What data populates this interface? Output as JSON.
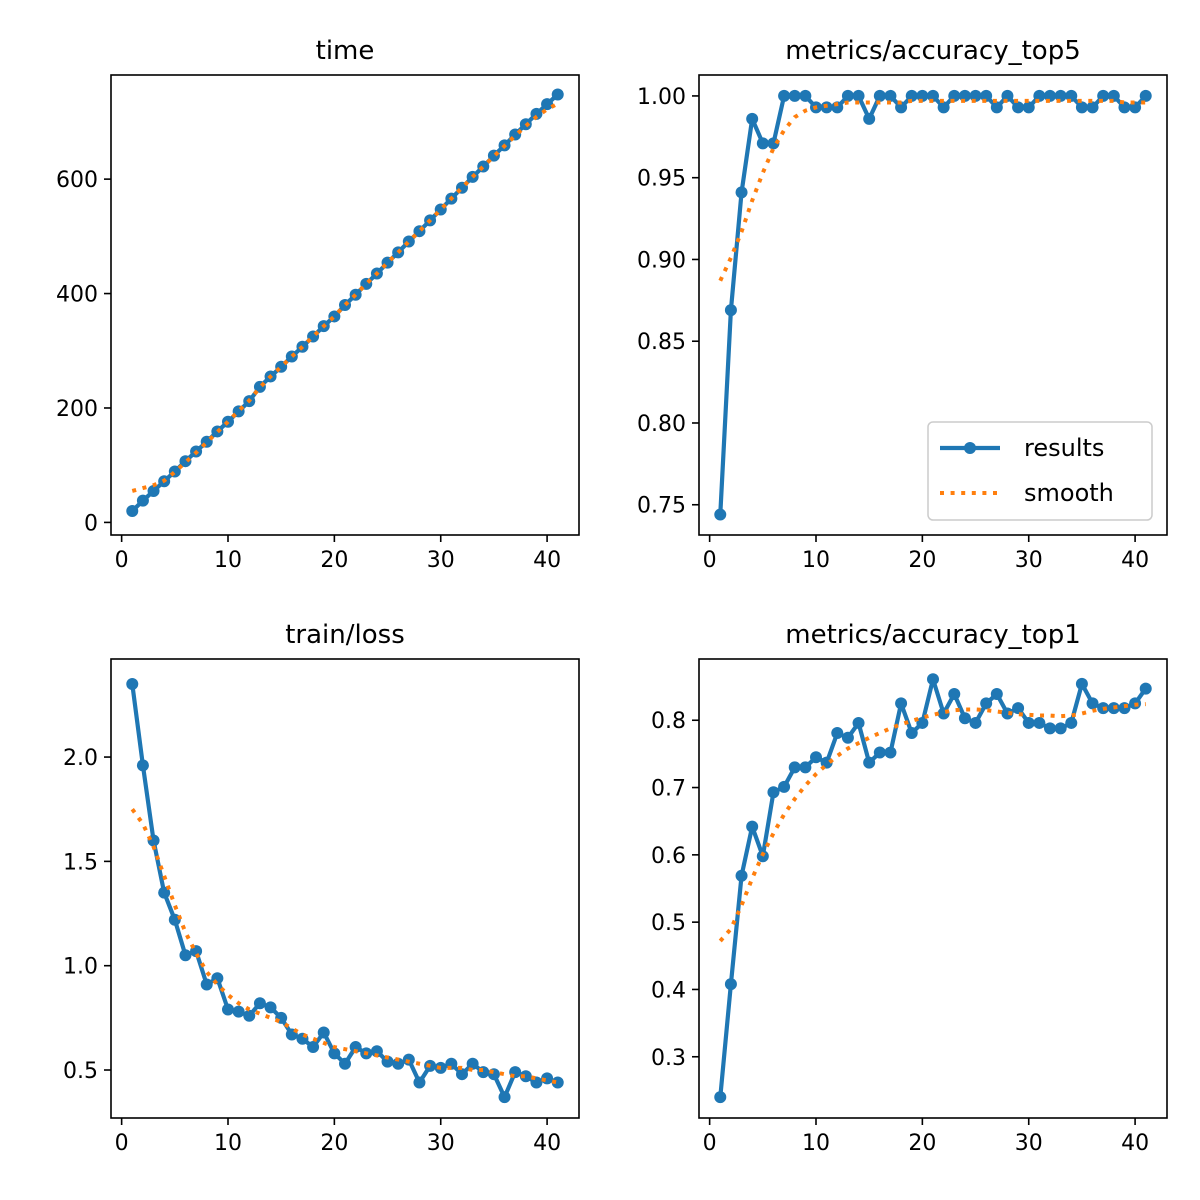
{
  "colors": {
    "results": "#1f77b4",
    "smooth": "#ff7f0e",
    "axes": "#000000",
    "background": "#ffffff"
  },
  "chart_data": [
    {
      "type": "line",
      "title": "time",
      "xlabel": "",
      "ylabel": "",
      "xlim": [
        -1,
        43
      ],
      "ylim": [
        -22,
        782
      ],
      "xticks": [
        0,
        10,
        20,
        30,
        40
      ],
      "yticks": [
        0,
        200,
        400,
        600
      ],
      "x": [
        1,
        2,
        3,
        4,
        5,
        6,
        7,
        8,
        9,
        10,
        11,
        12,
        13,
        14,
        15,
        16,
        17,
        18,
        19,
        20,
        21,
        22,
        23,
        24,
        25,
        26,
        27,
        28,
        29,
        30,
        31,
        32,
        33,
        34,
        35,
        36,
        37,
        38,
        39,
        40,
        41
      ],
      "series": [
        {
          "name": "results",
          "style": "line-marker",
          "values": [
            20,
            38,
            55,
            72,
            89,
            107,
            124,
            141,
            159,
            176,
            194,
            212,
            237,
            255,
            272,
            290,
            307,
            325,
            343,
            360,
            380,
            398,
            417,
            435,
            454,
            472,
            491,
            509,
            528,
            547,
            566,
            585,
            604,
            622,
            641,
            659,
            678,
            696,
            714,
            731,
            748
          ]
        },
        {
          "name": "smooth",
          "style": "dotted",
          "values": [
            55,
            60,
            65,
            73,
            88,
            105,
            122,
            140,
            158,
            176,
            195,
            213,
            236,
            255,
            272,
            290,
            307,
            325,
            343,
            360,
            380,
            398,
            417,
            435,
            454,
            472,
            491,
            509,
            528,
            547,
            566,
            585,
            604,
            622,
            640,
            658,
            676,
            693,
            709,
            722,
            732
          ]
        }
      ],
      "legend": null
    },
    {
      "type": "line",
      "title": "metrics/accuracy_top5",
      "xlabel": "",
      "ylabel": "",
      "xlim": [
        -1,
        43
      ],
      "ylim": [
        0.7315,
        1.0128
      ],
      "xticks": [
        0,
        10,
        20,
        30,
        40
      ],
      "yticks": [
        0.75,
        0.8,
        0.85,
        0.9,
        0.95,
        1.0
      ],
      "ytick_decimals": 2,
      "x": [
        1,
        2,
        3,
        4,
        5,
        6,
        7,
        8,
        9,
        10,
        11,
        12,
        13,
        14,
        15,
        16,
        17,
        18,
        19,
        20,
        21,
        22,
        23,
        24,
        25,
        26,
        27,
        28,
        29,
        30,
        31,
        32,
        33,
        34,
        35,
        36,
        37,
        38,
        39,
        40,
        41
      ],
      "series": [
        {
          "name": "results",
          "style": "line-marker",
          "values": [
            0.744,
            0.869,
            0.941,
            0.986,
            0.971,
            0.971,
            1.0,
            1.0,
            1.0,
            0.993,
            0.993,
            0.993,
            1.0,
            1.0,
            0.986,
            1.0,
            1.0,
            0.993,
            1.0,
            1.0,
            1.0,
            0.993,
            1.0,
            1.0,
            1.0,
            1.0,
            0.993,
            1.0,
            0.993,
            0.993,
            1.0,
            1.0,
            1.0,
            1.0,
            0.993,
            0.993,
            1.0,
            1.0,
            0.993,
            0.993,
            1.0
          ]
        },
        {
          "name": "smooth",
          "style": "dotted",
          "values": [
            0.887,
            0.901,
            0.917,
            0.936,
            0.953,
            0.968,
            0.979,
            0.987,
            0.991,
            0.993,
            0.994,
            0.995,
            0.996,
            0.996,
            0.996,
            0.996,
            0.996,
            0.996,
            0.997,
            0.997,
            0.997,
            0.997,
            0.997,
            0.997,
            0.997,
            0.997,
            0.997,
            0.997,
            0.997,
            0.997,
            0.997,
            0.997,
            0.997,
            0.997,
            0.997,
            0.997,
            0.997,
            0.997,
            0.996,
            0.996,
            0.996
          ]
        }
      ],
      "legend": {
        "placement": "lower-right",
        "entries": [
          "results",
          "smooth"
        ]
      }
    },
    {
      "type": "line",
      "title": "train/loss",
      "xlabel": "",
      "ylabel": "",
      "xlim": [
        -1,
        43
      ],
      "ylim": [
        0.27,
        2.47
      ],
      "xticks": [
        0,
        10,
        20,
        30,
        40
      ],
      "yticks": [
        0.5,
        1.0,
        1.5,
        2.0
      ],
      "ytick_decimals": 1,
      "x": [
        1,
        2,
        3,
        4,
        5,
        6,
        7,
        8,
        9,
        10,
        11,
        12,
        13,
        14,
        15,
        16,
        17,
        18,
        19,
        20,
        21,
        22,
        23,
        24,
        25,
        26,
        27,
        28,
        29,
        30,
        31,
        32,
        33,
        34,
        35,
        36,
        37,
        38,
        39,
        40,
        41
      ],
      "series": [
        {
          "name": "results",
          "style": "line-marker",
          "values": [
            2.35,
            1.96,
            1.6,
            1.35,
            1.22,
            1.05,
            1.07,
            0.91,
            0.94,
            0.79,
            0.78,
            0.76,
            0.82,
            0.8,
            0.75,
            0.67,
            0.65,
            0.61,
            0.68,
            0.58,
            0.53,
            0.61,
            0.58,
            0.59,
            0.54,
            0.53,
            0.55,
            0.44,
            0.52,
            0.51,
            0.53,
            0.48,
            0.53,
            0.49,
            0.48,
            0.37,
            0.49,
            0.47,
            0.44,
            0.46,
            0.44
          ]
        },
        {
          "name": "smooth",
          "style": "dotted",
          "values": [
            1.75,
            1.68,
            1.57,
            1.43,
            1.29,
            1.16,
            1.06,
            0.97,
            0.91,
            0.86,
            0.82,
            0.79,
            0.77,
            0.75,
            0.73,
            0.7,
            0.67,
            0.65,
            0.63,
            0.61,
            0.6,
            0.59,
            0.58,
            0.57,
            0.56,
            0.55,
            0.54,
            0.53,
            0.52,
            0.51,
            0.51,
            0.51,
            0.5,
            0.5,
            0.49,
            0.48,
            0.47,
            0.47,
            0.46,
            0.45,
            0.44
          ]
        }
      ],
      "legend": null
    },
    {
      "type": "line",
      "title": "metrics/accuracy_top1",
      "xlabel": "",
      "ylabel": "",
      "xlim": [
        -1,
        43
      ],
      "ylim": [
        0.209,
        0.891
      ],
      "xticks": [
        0,
        10,
        20,
        30,
        40
      ],
      "yticks": [
        0.3,
        0.4,
        0.5,
        0.6,
        0.7,
        0.8
      ],
      "ytick_decimals": 1,
      "x": [
        1,
        2,
        3,
        4,
        5,
        6,
        7,
        8,
        9,
        10,
        11,
        12,
        13,
        14,
        15,
        16,
        17,
        18,
        19,
        20,
        21,
        22,
        23,
        24,
        25,
        26,
        27,
        28,
        29,
        30,
        31,
        32,
        33,
        34,
        35,
        36,
        37,
        38,
        39,
        40,
        41
      ],
      "series": [
        {
          "name": "results",
          "style": "line-marker",
          "values": [
            0.24,
            0.408,
            0.569,
            0.642,
            0.598,
            0.693,
            0.701,
            0.73,
            0.73,
            0.745,
            0.737,
            0.781,
            0.774,
            0.796,
            0.737,
            0.752,
            0.752,
            0.825,
            0.781,
            0.796,
            0.861,
            0.81,
            0.839,
            0.803,
            0.796,
            0.825,
            0.839,
            0.81,
            0.818,
            0.796,
            0.796,
            0.788,
            0.788,
            0.796,
            0.854,
            0.825,
            0.818,
            0.818,
            0.818,
            0.825,
            0.847
          ]
        },
        {
          "name": "smooth",
          "style": "dotted",
          "values": [
            0.472,
            0.49,
            0.525,
            0.565,
            0.601,
            0.632,
            0.66,
            0.683,
            0.703,
            0.72,
            0.734,
            0.747,
            0.758,
            0.766,
            0.774,
            0.781,
            0.788,
            0.794,
            0.799,
            0.804,
            0.808,
            0.812,
            0.815,
            0.816,
            0.816,
            0.815,
            0.813,
            0.811,
            0.809,
            0.808,
            0.807,
            0.807,
            0.806,
            0.807,
            0.81,
            0.814,
            0.817,
            0.819,
            0.821,
            0.823,
            0.824
          ]
        }
      ],
      "legend": null
    }
  ]
}
